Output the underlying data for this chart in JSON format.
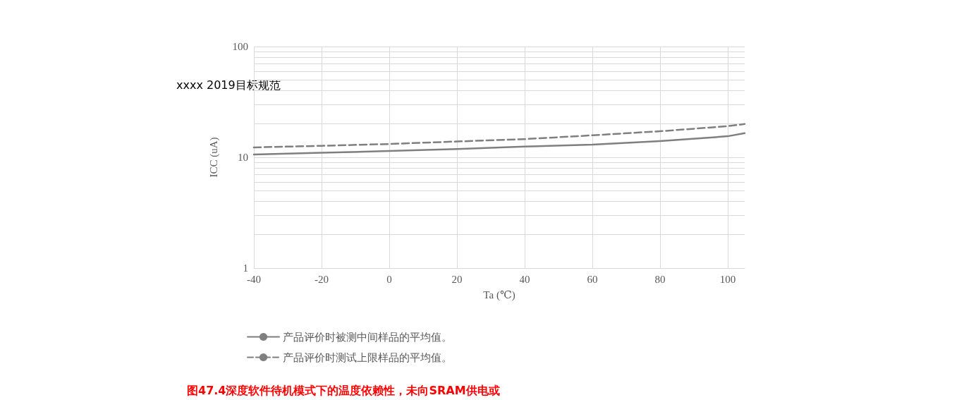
{
  "chart_data": {
    "type": "line",
    "title": "图47.4深度软件待机模式下的温度依赖性，未向SRAM供电或",
    "xlabel": "Ta (℃)",
    "ylabel": "ICC (uA)",
    "annotations": [
      "xxxx 2019目标规范"
    ],
    "x": [
      -40,
      -20,
      0,
      20,
      40,
      60,
      80,
      100,
      105
    ],
    "series": [
      {
        "name": "产品评价时被测中间样品的平均值。",
        "color": "#7f7f7f",
        "line_style": "solid",
        "values": [
          10.6,
          11.0,
          11.4,
          11.9,
          12.5,
          13.0,
          14.0,
          15.5,
          16.5
        ]
      },
      {
        "name": "产品评价时测试上限样品的平均值。",
        "color": "#7f7f7f",
        "line_style": "dashed",
        "values": [
          12.3,
          12.7,
          13.2,
          13.9,
          14.6,
          15.8,
          17.2,
          19.1,
          20
        ]
      }
    ],
    "xlim": [
      -40,
      105
    ],
    "xticks": [
      -40,
      -20,
      0,
      20,
      40,
      60,
      80,
      100
    ],
    "ylim": [
      1,
      100
    ],
    "yticks": [
      1,
      {
        "value": 2,
        "label": null
      },
      {
        "value": 3,
        "label": null
      },
      {
        "value": 4,
        "label": null
      },
      {
        "value": 5,
        "label": null
      },
      {
        "value": 6,
        "label": null
      },
      {
        "value": 7,
        "label": null
      },
      {
        "value": 8,
        "label": null
      },
      {
        "value": 9,
        "label": null
      },
      10,
      {
        "value": 20,
        "label": null
      },
      {
        "value": 30,
        "label": null
      },
      {
        "value": 40,
        "label": null
      },
      {
        "value": 50,
        "label": null
      },
      {
        "value": 60,
        "label": null
      },
      {
        "value": 70,
        "label": null
      },
      {
        "value": 80,
        "label": null
      },
      {
        "value": 90,
        "label": null
      },
      100
    ],
    "log": "y",
    "grid": true,
    "legend": "bottom",
    "marker": "none"
  }
}
